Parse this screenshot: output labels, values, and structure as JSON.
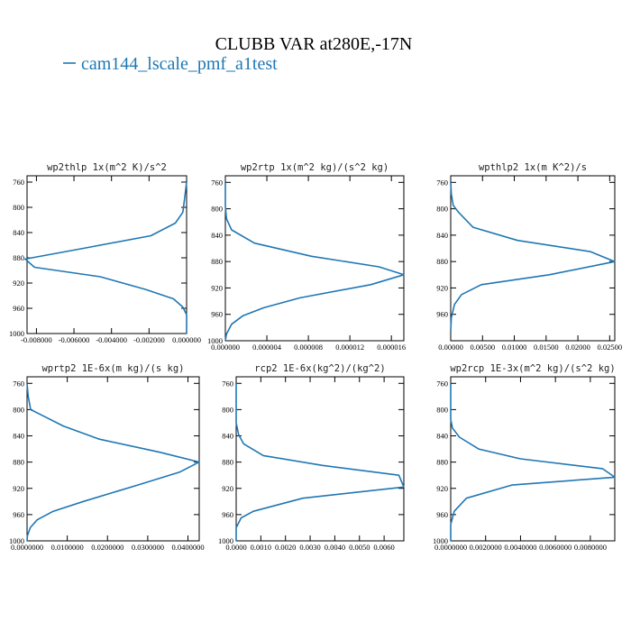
{
  "figure": {
    "title": "CLUBB VAR at280E,-17N",
    "legend_label": "cam144_lscale_pmf_a1test",
    "line_color": "#1f77b4"
  },
  "chart_data": [
    {
      "type": "line",
      "title": "wp2thlp  1x(m^2 K)/s^2",
      "xlim": [
        -0.0085,
        0.0
      ],
      "ylim": [
        1000,
        750
      ],
      "x_ticks": [
        -0.008,
        -0.006,
        -0.004,
        -0.002,
        0.0
      ],
      "x_tick_labels": [
        "-0.008000",
        "-0.006000",
        "-0.004000",
        "-0.002000",
        "0.000000"
      ],
      "y_ticks": [
        760,
        800,
        840,
        880,
        920,
        960,
        1000
      ],
      "y_tick_labels": [
        "760",
        "800",
        "840",
        "880",
        "920",
        "960",
        "1000"
      ],
      "series": [
        {
          "x": [
            0.0,
            -0.0001,
            -0.0002,
            -0.0006,
            -0.0019,
            -0.0055,
            -0.0086,
            -0.0081,
            -0.0046,
            -0.0022,
            -0.0007,
            -0.0002,
            0.0,
            0.0,
            0.0
          ],
          "y": [
            760,
            785,
            808,
            825,
            845,
            865,
            882,
            895,
            910,
            930,
            945,
            958,
            970,
            985,
            1000
          ]
        }
      ]
    },
    {
      "type": "line",
      "title": "wp2rtp  1x(m^2 kg)/(s^2 kg)",
      "xlim": [
        0.0,
        1.72e-05
      ],
      "ylim": [
        1000,
        750
      ],
      "x_ticks": [
        0.0,
        4e-06,
        8e-06,
        1.2e-05,
        1.6e-05
      ],
      "x_tick_labels": [
        "0.000000",
        "0.000004",
        "0.000008",
        "0.000012",
        "0.000016"
      ],
      "y_ticks": [
        760,
        800,
        840,
        880,
        920,
        960,
        1000
      ],
      "y_tick_labels": [
        "760",
        "800",
        "840",
        "880",
        "920",
        "960",
        "1000"
      ],
      "series": [
        {
          "x": [
            0.0,
            0.0,
            1e-07,
            6e-07,
            2.8e-06,
            8.3e-06,
            1.48e-05,
            1.72e-05,
            1.4e-05,
            7.2e-06,
            3.7e-06,
            1.7e-06,
            6e-07,
            1e-07,
            0.0
          ],
          "y": [
            760,
            795,
            815,
            832,
            852,
            872,
            888,
            900,
            915,
            935,
            950,
            962,
            975,
            990,
            1000
          ]
        }
      ]
    },
    {
      "type": "line",
      "title": "wpthlp2  1x(m K^2)/s",
      "xlim": [
        0.0,
        0.0258
      ],
      "ylim": [
        1000,
        750
      ],
      "x_ticks": [
        0.0,
        0.005,
        0.01,
        0.015,
        0.02,
        0.025
      ],
      "x_tick_labels": [
        "0.00000",
        "0.00500",
        "0.01000",
        "0.01500",
        "0.02000",
        "0.02500"
      ],
      "y_ticks": [
        760,
        800,
        840,
        880,
        920,
        960
      ],
      "y_tick_labels": [
        "760",
        "800",
        "840",
        "880",
        "920",
        "960"
      ],
      "series": [
        {
          "x": [
            0.0,
            0.0001,
            0.0004,
            0.0012,
            0.0035,
            0.0105,
            0.022,
            0.0258,
            0.0155,
            0.0048,
            0.0017,
            0.0006,
            0.0001,
            0.0
          ],
          "y": [
            760,
            778,
            795,
            805,
            828,
            848,
            865,
            880,
            900,
            915,
            930,
            945,
            965,
            985
          ]
        }
      ]
    },
    {
      "type": "line",
      "title": "wprtp2  1E-6x(m kg)/(s kg)",
      "xlim": [
        0.0,
        0.0428
      ],
      "ylim": [
        1000,
        750
      ],
      "x_ticks": [
        0.0,
        0.01,
        0.02,
        0.03,
        0.04
      ],
      "x_tick_labels": [
        "0.0000000",
        "0.0100000",
        "0.0200000",
        "0.0300000",
        "0.0400000"
      ],
      "y_ticks": [
        760,
        800,
        840,
        880,
        920,
        960,
        1000
      ],
      "y_tick_labels": [
        "760",
        "800",
        "840",
        "880",
        "920",
        "960",
        "1000"
      ],
      "series": [
        {
          "x": [
            0.0,
            0.0003,
            0.0009,
            0.0035,
            0.009,
            0.018,
            0.033,
            0.0428,
            0.038,
            0.0275,
            0.014,
            0.0065,
            0.0025,
            0.0008,
            0.0001,
            0.0
          ],
          "y": [
            760,
            780,
            800,
            808,
            825,
            845,
            865,
            880,
            895,
            915,
            940,
            955,
            968,
            980,
            992,
            1000
          ]
        }
      ]
    },
    {
      "type": "line",
      "title": "rcp2  1E-6x(kg^2)/(kg^2)",
      "xlim": [
        0.0,
        0.0068
      ],
      "ylim": [
        1000,
        750
      ],
      "x_ticks": [
        0.0,
        0.001,
        0.002,
        0.003,
        0.004,
        0.005,
        0.006
      ],
      "x_tick_labels": [
        "0.0000",
        "0.0010",
        "0.0020",
        "0.0030",
        "0.0040",
        "0.0050",
        "0.0060"
      ],
      "y_ticks": [
        760,
        800,
        840,
        880,
        920,
        960,
        1000
      ],
      "y_tick_labels": [
        "760",
        "800",
        "840",
        "880",
        "920",
        "960",
        "1000"
      ],
      "series": [
        {
          "x": [
            0.0,
            0.0,
            0.0001,
            0.0003,
            0.0011,
            0.0035,
            0.0066,
            0.0068,
            0.0027,
            0.0007,
            0.0002,
            0.0,
            0.0
          ],
          "y": [
            760,
            820,
            838,
            852,
            870,
            885,
            900,
            918,
            935,
            955,
            965,
            980,
            1000
          ]
        }
      ]
    },
    {
      "type": "line",
      "title": "wp2rcp  1E-3x(m^2 kg)/(s^2 kg)",
      "xlim": [
        0.0,
        0.0094
      ],
      "ylim": [
        1000,
        750
      ],
      "x_ticks": [
        0.0,
        0.002,
        0.004,
        0.006,
        0.008
      ],
      "x_tick_labels": [
        "0.0000000",
        "0.0020000",
        "0.0040000",
        "0.0060000",
        "0.0080000"
      ],
      "y_ticks": [
        760,
        800,
        840,
        880,
        920,
        960,
        1000
      ],
      "y_tick_labels": [
        "760",
        "800",
        "840",
        "880",
        "920",
        "960",
        "1000"
      ],
      "series": [
        {
          "x": [
            0.0,
            0.0,
            0.0001,
            0.0005,
            0.0016,
            0.004,
            0.0087,
            0.0094,
            0.0035,
            0.0009,
            0.0002,
            0.0,
            0.0
          ],
          "y": [
            760,
            815,
            828,
            842,
            860,
            875,
            890,
            903,
            915,
            935,
            955,
            975,
            1000
          ]
        }
      ]
    }
  ]
}
